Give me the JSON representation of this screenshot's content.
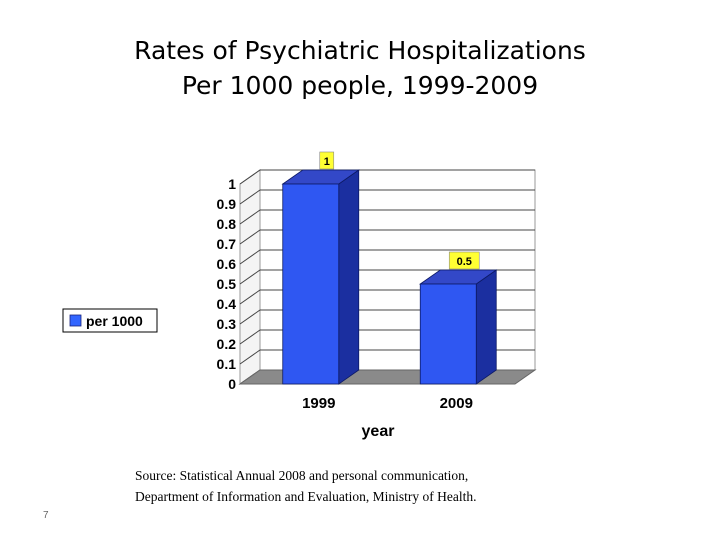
{
  "title_lines": [
    "Rates of Psychiatric Hospitalizations",
    "Per 1000 people, 1999-2009"
  ],
  "chart_data": {
    "type": "bar",
    "categories": [
      "1999",
      "2009"
    ],
    "series": [
      {
        "name": "per 1000",
        "values": [
          1,
          0.5
        ]
      }
    ],
    "data_labels": [
      "1",
      "0.5"
    ],
    "yticks": [
      "0",
      "0.1",
      "0.2",
      "0.3",
      "0.4",
      "0.5",
      "0.6",
      "0.7",
      "0.8",
      "0.9",
      "1"
    ],
    "ylim": [
      0,
      1
    ],
    "xlabel": "year",
    "ylabel": "",
    "grid": true,
    "legend_position": "left",
    "three_d": true,
    "colors": {
      "bar": "#2f57f2",
      "bar_side": "#1b2fa0",
      "bar_top": "#3348c8",
      "label_bg": "#ffff33",
      "floor": "#8a8a8a",
      "legend_swatch": "#3366ff"
    }
  },
  "source_lines": [
    "Source: Statistical Annual 2008 and personal communication,",
    "Department of Information and Evaluation, Ministry of Health."
  ],
  "slide_number": "7"
}
